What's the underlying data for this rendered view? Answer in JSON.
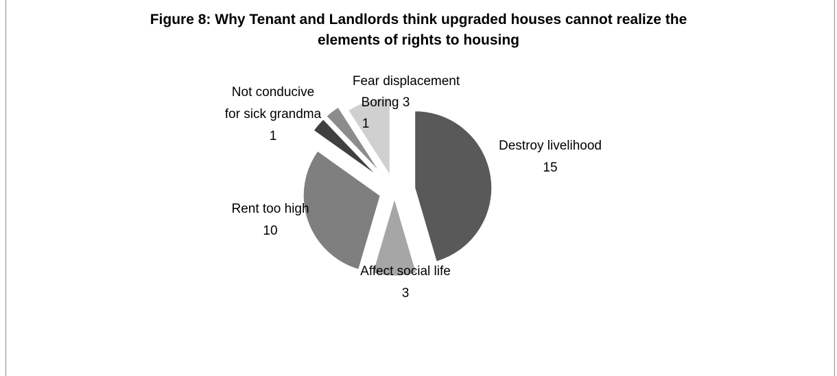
{
  "chart_data": {
    "type": "pie",
    "title_lines": [
      "Figure 8: Why Tenant and Landlords think upgraded houses cannot realize the",
      "elements of rights to housing"
    ],
    "slices": [
      {
        "label_lines": [
          "Destroy livelihood"
        ],
        "value": 15,
        "color": "#595959"
      },
      {
        "label_lines": [
          "Affect social life"
        ],
        "value": 3,
        "color": "#a6a6a6"
      },
      {
        "label_lines": [
          "Rent too high"
        ],
        "value": 10,
        "color": "#7f7f7f"
      },
      {
        "label_lines": [
          "Not conducive",
          "for sick grandma"
        ],
        "value": 1,
        "color": "#404040"
      },
      {
        "label_lines": [
          "Boring"
        ],
        "value": 1,
        "color": "#8c8c8c"
      },
      {
        "label_lines": [
          "Fear displacement"
        ],
        "value": 3,
        "color": "#d0d0d0"
      }
    ],
    "exploded": true,
    "legend": "none"
  }
}
